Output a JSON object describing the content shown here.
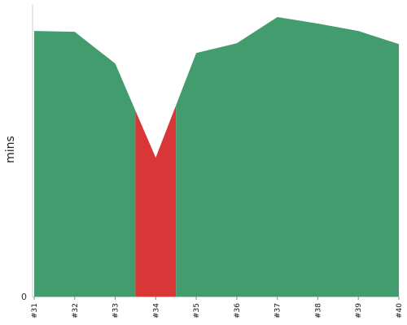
{
  "chart_data": {
    "type": "area",
    "categories": [
      "#31",
      "#32",
      "#33",
      "#34",
      "#35",
      "#36",
      "#37",
      "#38",
      "#39",
      "#40"
    ],
    "values": [
      32.5,
      32.4,
      28.5,
      17.0,
      29.8,
      31.0,
      34.2,
      33.4,
      32.5,
      30.9
    ],
    "segment_status": [
      "ok",
      "ok",
      "ok",
      "fail",
      "ok",
      "ok",
      "ok",
      "ok",
      "ok",
      "ok"
    ],
    "status_colors": {
      "ok": "#439c6d",
      "fail": "#d83637"
    },
    "title": "",
    "xlabel": "",
    "ylabel": "mins",
    "y_tick_label": "0",
    "ylim": [
      0,
      34.2
    ],
    "grid": false,
    "legend": "none",
    "note": "Each x-axis category has its own segment. Segment #33–#35 is shaded fail (red), others ok (green). The shading boundaries lie halfway between adjacent categories."
  }
}
